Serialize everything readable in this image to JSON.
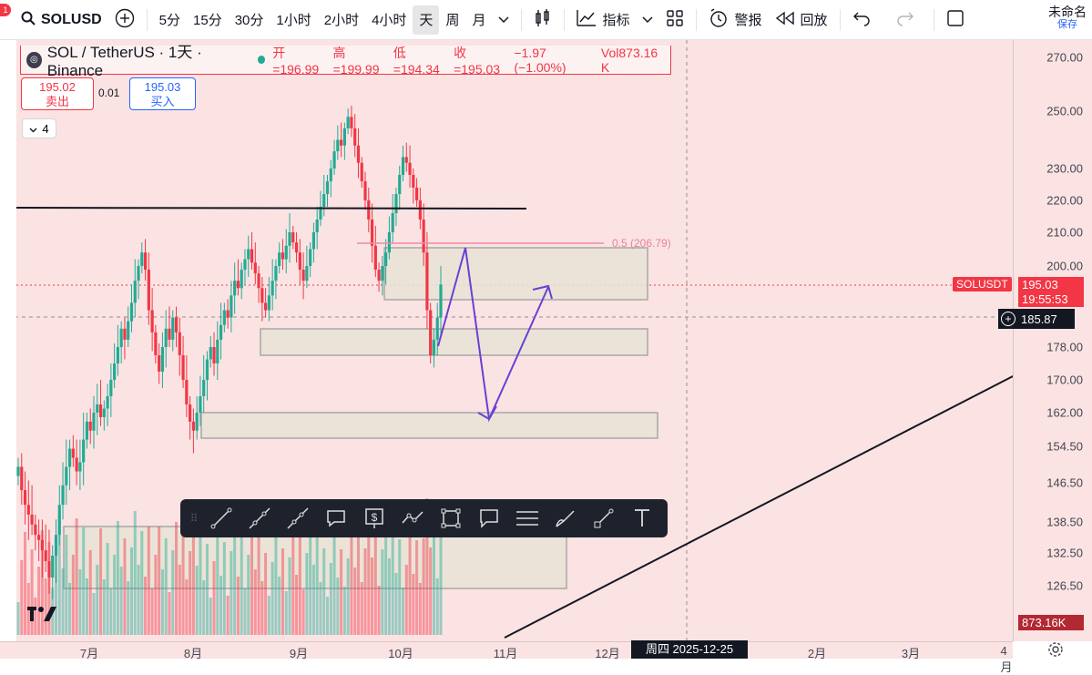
{
  "toolbar": {
    "notification_count": "1",
    "symbol": "SOLUSD",
    "intervals": [
      "5分",
      "15分",
      "30分",
      "1小时",
      "2小时",
      "4小时",
      "天",
      "周",
      "月"
    ],
    "active_interval": "天",
    "indicators_label": "指标",
    "alert_label": "警报",
    "replay_label": "回放",
    "layout_name": "未命名",
    "save_label": "保存"
  },
  "legend": {
    "title": "SOL / TetherUS · 1天 · Binance",
    "open": "开=196.99",
    "high": "高=199.99",
    "low": "低=194.34",
    "close": "收=195.03",
    "change": "−1.97 (−1.00%)",
    "volume": "Vol873.16 K"
  },
  "trade": {
    "sell_price": "195.02",
    "sell_label": "卖出",
    "spread": "0.01",
    "buy_price": "195.03",
    "buy_label": "买入",
    "collapse_count": "4"
  },
  "fib_label": "0.5 (206.79)",
  "price_axis": {
    "labels": [
      "270.00",
      "250.00",
      "230.00",
      "220.00",
      "210.00",
      "200.00",
      "178.00",
      "170.00",
      "162.00",
      "154.50",
      "146.50",
      "138.50",
      "132.50",
      "126.50"
    ],
    "symbol_tag": "SOLUSDT",
    "last_price": "195.03",
    "countdown": "19:55:53",
    "crosshair_price": "185.87",
    "volume_tag": "873.16K"
  },
  "time_axis": {
    "labels": [
      "7月",
      "8月",
      "9月",
      "10月",
      "11月",
      "12月",
      "2月",
      "3月",
      "4月"
    ],
    "crosshair_date": "周四 2025-12-25"
  },
  "colors": {
    "up": "#22ab94",
    "down": "#f23645",
    "background": "#fbe3e3",
    "zone_fill": "#e8e3d6",
    "arrow": "#6b3fd4"
  },
  "chart_data": {
    "type": "candlestick",
    "symbol": "SOL / TetherUS",
    "interval": "1D",
    "exchange": "Binance",
    "ylim": [
      120,
      275
    ],
    "last_bar": {
      "open": 196.99,
      "high": 199.99,
      "low": 194.34,
      "close": 195.03,
      "volume": "873.16K"
    },
    "key_prices": [
      {
        "price": 206.79,
        "label": "0.5 (206.79)"
      },
      {
        "price": 195.03,
        "label": "SOLUSDT"
      },
      {
        "price": 185.87,
        "label": "crosshair"
      }
    ]
  }
}
